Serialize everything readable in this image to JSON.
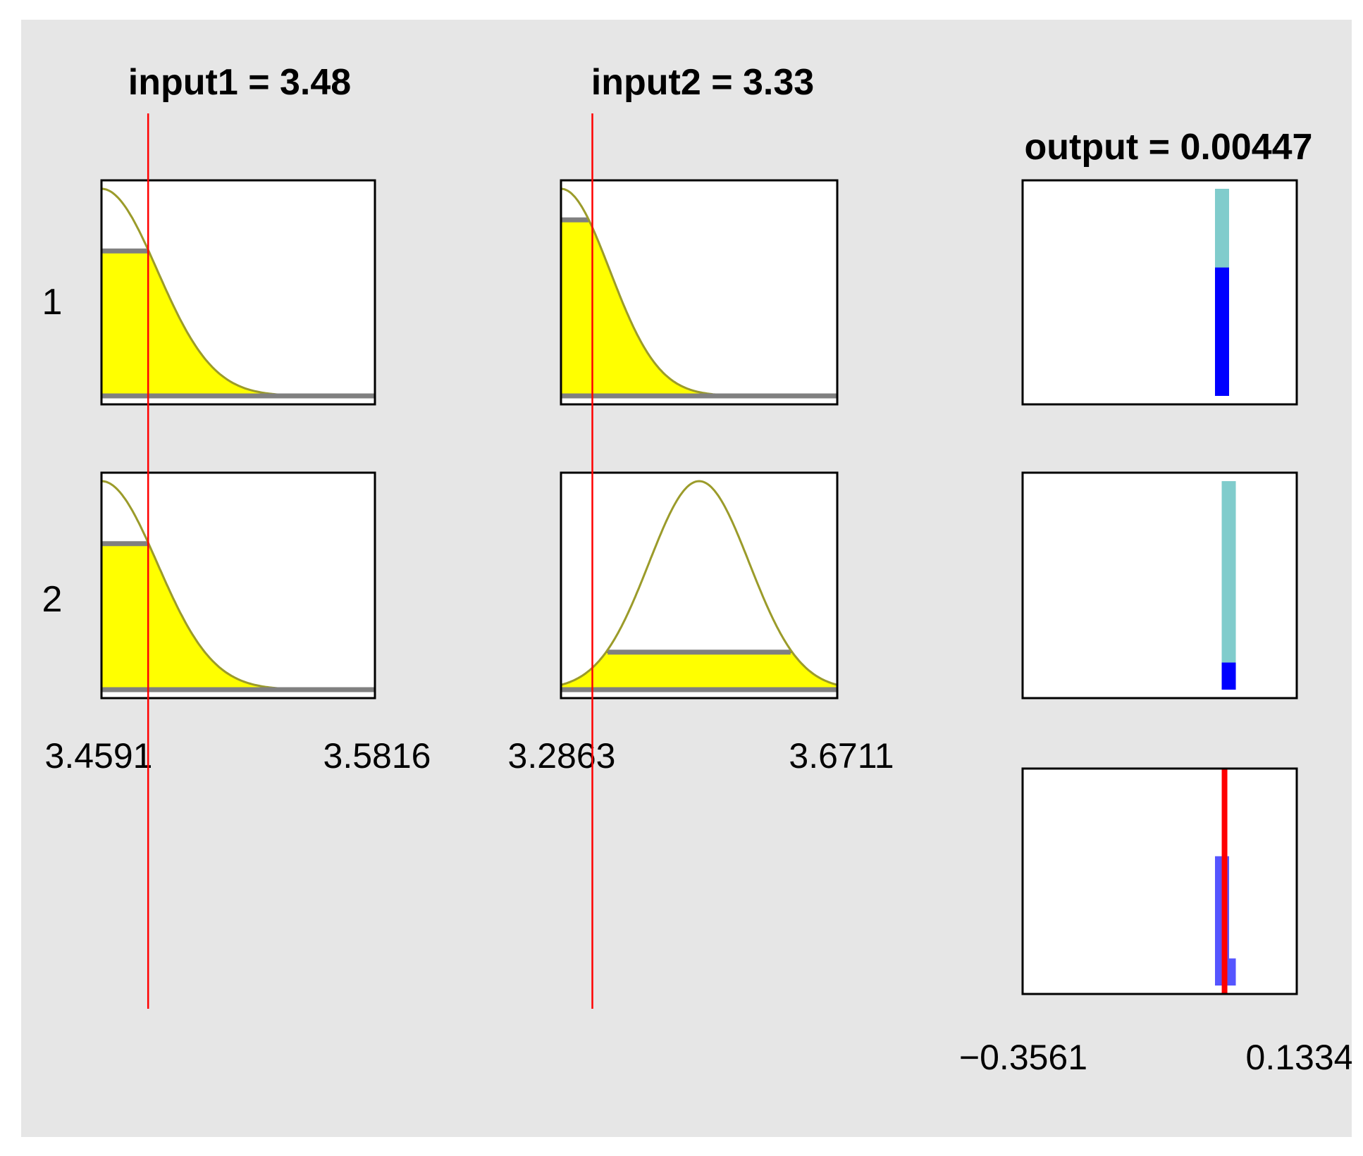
{
  "window": {
    "input1_title": "input1 = 3.48",
    "input2_title": "input2 = 3.33",
    "output_title": "output = 0.00447"
  },
  "rules": [
    "1",
    "2"
  ],
  "colors": {
    "background": "#e6e6e6",
    "mf_fill": "#ffff00",
    "mf_curve": "#9b9b2a",
    "marker": "#ff0000",
    "output_clipped": "#0000ff",
    "output_full": "#80cccc",
    "aggregate": "#5555ff",
    "baseline": "#808080"
  },
  "chart_data": {
    "type": "fuzzy-rule-viewer",
    "inputs": [
      {
        "name": "input1",
        "value": 3.48,
        "range": [
          3.4591,
          3.5816
        ],
        "range_labels": [
          "3.4591",
          "3.5816"
        ],
        "mfs": [
          {
            "rule": 1,
            "shape": "gaussian",
            "center": 3.4591,
            "sigma": 0.025,
            "firing": 0.7
          },
          {
            "rule": 2,
            "shape": "gaussian",
            "center": 3.4591,
            "sigma": 0.025,
            "firing": 0.7
          }
        ]
      },
      {
        "name": "input2",
        "value": 3.33,
        "range": [
          3.2863,
          3.6711
        ],
        "range_labels": [
          "3.2863",
          "3.6711"
        ],
        "mfs": [
          {
            "rule": 1,
            "shape": "gaussian",
            "center": 3.2863,
            "sigma": 0.068,
            "firing": 0.85
          },
          {
            "rule": 2,
            "shape": "gaussian",
            "center": 3.4787,
            "sigma": 0.07,
            "firing": 0.18
          }
        ]
      }
    ],
    "output": {
      "name": "output",
      "value": 0.00447,
      "range": [
        -0.3561,
        0.1334
      ],
      "range_labels": [
        "−0.3561",
        "0.1334"
      ],
      "rule_outputs": [
        {
          "rule": 1,
          "value": 0.0,
          "firing": 0.62
        },
        {
          "rule": 2,
          "value": 0.012,
          "firing": 0.13
        }
      ]
    }
  }
}
